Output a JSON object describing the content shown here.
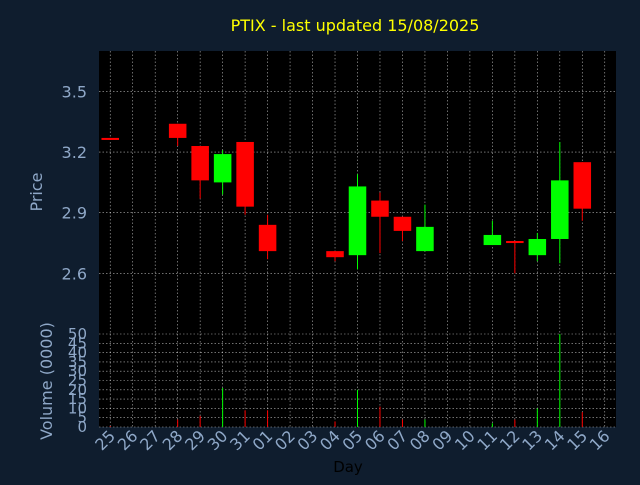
{
  "chart_data": {
    "type": "candlestick",
    "title": "PTIX -  last updated 15/08/2025",
    "xlabel": "Day",
    "ylabel": "Price",
    "volume_ylabel": "Volume (0000)",
    "price_ylim": [
      2.3,
      3.7
    ],
    "price_ticks": [
      "2.6",
      "2.9",
      "3.2",
      "3.5"
    ],
    "volume_ylim": [
      0,
      50
    ],
    "volume_ticks": [
      "0",
      "5",
      "10",
      "15",
      "20",
      "25",
      "30",
      "35",
      "40",
      "45",
      "50"
    ],
    "categories": [
      "25",
      "26",
      "27",
      "28",
      "29",
      "30",
      "31",
      "01",
      "02",
      "03",
      "04",
      "05",
      "06",
      "07",
      "08",
      "09",
      "10",
      "11",
      "12",
      "13",
      "14",
      "15",
      "16"
    ],
    "grid": true,
    "candles": [
      {
        "day": "25",
        "open": 3.27,
        "close": 3.26,
        "high": 3.27,
        "low": 3.26,
        "volume": 0.5
      },
      {
        "day": "28",
        "open": 3.34,
        "close": 3.27,
        "high": 3.34,
        "low": 3.23,
        "volume": 4
      },
      {
        "day": "29",
        "open": 3.23,
        "close": 3.06,
        "high": 3.23,
        "low": 2.97,
        "volume": 6
      },
      {
        "day": "30",
        "open": 3.05,
        "close": 3.19,
        "high": 3.21,
        "low": 2.99,
        "volume": 21
      },
      {
        "day": "31",
        "open": 3.25,
        "close": 2.93,
        "high": 3.25,
        "low": 2.89,
        "volume": 9
      },
      {
        "day": "01",
        "open": 2.84,
        "close": 2.71,
        "high": 2.89,
        "low": 2.67,
        "volume": 9
      },
      {
        "day": "04",
        "open": 2.71,
        "close": 2.68,
        "high": 2.71,
        "low": 2.66,
        "volume": 3
      },
      {
        "day": "05",
        "open": 2.69,
        "close": 3.03,
        "high": 3.09,
        "low": 2.62,
        "volume": 20
      },
      {
        "day": "06",
        "open": 2.96,
        "close": 2.88,
        "high": 3.0,
        "low": 2.7,
        "volume": 11
      },
      {
        "day": "07",
        "open": 2.88,
        "close": 2.81,
        "high": 2.88,
        "low": 2.76,
        "volume": 4
      },
      {
        "day": "08",
        "open": 2.71,
        "close": 2.83,
        "high": 2.94,
        "low": 2.71,
        "volume": 4
      },
      {
        "day": "11",
        "open": 2.74,
        "close": 2.79,
        "high": 2.86,
        "low": 2.74,
        "volume": 2
      },
      {
        "day": "12",
        "open": 2.76,
        "close": 2.75,
        "high": 2.76,
        "low": 2.6,
        "volume": 4
      },
      {
        "day": "13",
        "open": 2.69,
        "close": 2.77,
        "high": 2.8,
        "low": 2.66,
        "volume": 10
      },
      {
        "day": "14",
        "open": 2.77,
        "close": 3.06,
        "high": 3.25,
        "low": 2.65,
        "volume": 50
      },
      {
        "day": "15",
        "open": 3.15,
        "close": 2.92,
        "high": 3.15,
        "low": 2.86,
        "volume": 8
      }
    ],
    "colors": {
      "background": "#0f1d2e",
      "panel": "#000000",
      "up": "#00ff00",
      "down": "#ff0000",
      "grid": "#ffffff",
      "title": "#ffff00",
      "axis_text": "#8fa8c8"
    }
  }
}
